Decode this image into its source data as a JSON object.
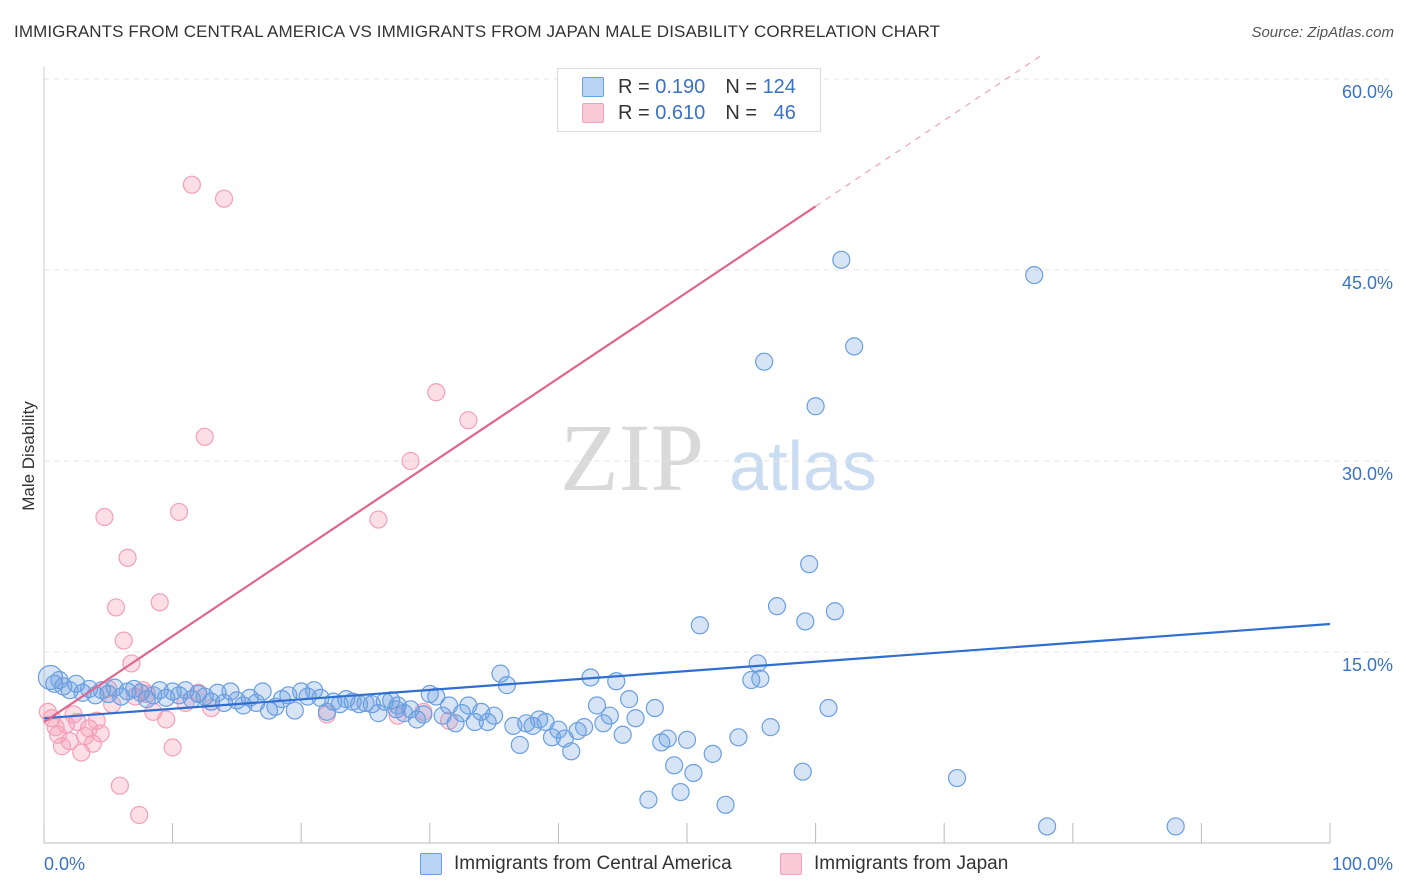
{
  "title": "IMMIGRANTS FROM CENTRAL AMERICA VS IMMIGRANTS FROM JAPAN MALE DISABILITY CORRELATION CHART",
  "source": "Source: ZipAtlas.com",
  "watermark": {
    "zip": "ZIP",
    "atlas": "atlas"
  },
  "colors": {
    "blue": "#6a9fe0",
    "blue_line": "#2f6fcf",
    "pink": "#f3a0b8",
    "pink_line": "#e0668e",
    "axis_text": "#3a72c4"
  },
  "legend": {
    "row1": {
      "r_label": "R =",
      "r_value": "0.190",
      "n_label": "N =",
      "n_value": "124"
    },
    "row2": {
      "r_label": "R =",
      "r_value": "0.610",
      "n_label": "N =",
      "n_value": "46"
    }
  },
  "chart_data": {
    "type": "scatter",
    "title": "IMMIGRANTS FROM CENTRAL AMERICA VS IMMIGRANTS FROM JAPAN MALE DISABILITY CORRELATION CHART",
    "xlabel": "",
    "ylabel": "Male Disability",
    "xlim": [
      0,
      100
    ],
    "ylim": [
      0,
      63
    ],
    "x_tick_labels": [
      "0.0%",
      "100.0%"
    ],
    "y_ticks": [
      15,
      30,
      45,
      60
    ],
    "y_tick_labels": [
      "15.0%",
      "30.0%",
      "45.0%",
      "60.0%"
    ],
    "grid": true,
    "legend_position": "bottom",
    "series": [
      {
        "name": "Immigrants from Central America",
        "color": "#6a9fe0",
        "trend": {
          "x": [
            0,
            100
          ],
          "y": [
            9.8,
            17.2
          ]
        },
        "points": [
          [
            0.5,
            13.0
          ],
          [
            0.8,
            12.5
          ],
          [
            1.2,
            12.8
          ],
          [
            1.5,
            12.3
          ],
          [
            2.0,
            12.0
          ],
          [
            2.5,
            12.5
          ],
          [
            3.0,
            11.8
          ],
          [
            3.5,
            12.1
          ],
          [
            4.0,
            11.6
          ],
          [
            4.5,
            12.0
          ],
          [
            5.0,
            11.7
          ],
          [
            5.5,
            12.2
          ],
          [
            6.0,
            11.5
          ],
          [
            6.5,
            11.9
          ],
          [
            7.0,
            12.1
          ],
          [
            7.5,
            11.8
          ],
          [
            8.0,
            11.3
          ],
          [
            8.5,
            11.6
          ],
          [
            9.0,
            12.0
          ],
          [
            9.5,
            11.4
          ],
          [
            10.0,
            11.9
          ],
          [
            10.5,
            11.6
          ],
          [
            11.0,
            12.0
          ],
          [
            11.5,
            11.3
          ],
          [
            12.0,
            11.7
          ],
          [
            12.5,
            11.5
          ],
          [
            13.0,
            11.1
          ],
          [
            13.5,
            11.8
          ],
          [
            14.0,
            11.0
          ],
          [
            14.5,
            11.9
          ],
          [
            15.0,
            11.2
          ],
          [
            15.5,
            10.8
          ],
          [
            16.0,
            11.4
          ],
          [
            16.5,
            11.0
          ],
          [
            17.0,
            11.9
          ],
          [
            17.5,
            10.4
          ],
          [
            18.0,
            10.7
          ],
          [
            18.5,
            11.3
          ],
          [
            19.0,
            11.6
          ],
          [
            19.5,
            10.4
          ],
          [
            20.0,
            11.9
          ],
          [
            20.5,
            11.5
          ],
          [
            21.0,
            12.0
          ],
          [
            21.5,
            11.4
          ],
          [
            22.0,
            10.3
          ],
          [
            22.5,
            11.1
          ],
          [
            23.0,
            10.9
          ],
          [
            23.5,
            11.3
          ],
          [
            24.0,
            11.1
          ],
          [
            24.5,
            10.9
          ],
          [
            25.0,
            11.0
          ],
          [
            25.5,
            10.9
          ],
          [
            26.0,
            10.2
          ],
          [
            26.5,
            11.1
          ],
          [
            27.0,
            11.2
          ],
          [
            27.5,
            10.8
          ],
          [
            28.0,
            10.2
          ],
          [
            28.5,
            10.5
          ],
          [
            29.0,
            9.7
          ],
          [
            29.5,
            10.1
          ],
          [
            30.0,
            11.7
          ],
          [
            30.5,
            11.5
          ],
          [
            31.0,
            10.0
          ],
          [
            31.5,
            10.8
          ],
          [
            32.0,
            9.4
          ],
          [
            32.5,
            10.2
          ],
          [
            33.0,
            10.8
          ],
          [
            33.5,
            9.5
          ],
          [
            34.0,
            10.3
          ],
          [
            34.5,
            9.5
          ],
          [
            35.0,
            10.0
          ],
          [
            35.5,
            13.3
          ],
          [
            36.0,
            12.4
          ],
          [
            36.5,
            9.2
          ],
          [
            37.0,
            7.7
          ],
          [
            37.5,
            9.4
          ],
          [
            38.0,
            9.2
          ],
          [
            38.5,
            9.7
          ],
          [
            39.0,
            9.5
          ],
          [
            39.5,
            8.3
          ],
          [
            40.0,
            8.9
          ],
          [
            40.5,
            8.2
          ],
          [
            41.0,
            7.2
          ],
          [
            41.5,
            8.8
          ],
          [
            42.0,
            9.1
          ],
          [
            42.5,
            13.0
          ],
          [
            43.0,
            10.8
          ],
          [
            43.5,
            9.4
          ],
          [
            44.0,
            10.0
          ],
          [
            44.5,
            12.7
          ],
          [
            45.0,
            8.5
          ],
          [
            45.5,
            11.3
          ],
          [
            46.0,
            9.8
          ],
          [
            47.0,
            3.4
          ],
          [
            47.5,
            10.6
          ],
          [
            48.0,
            7.9
          ],
          [
            48.5,
            8.2
          ],
          [
            49.0,
            6.1
          ],
          [
            49.5,
            4.0
          ],
          [
            50.0,
            8.1
          ],
          [
            50.5,
            5.5
          ],
          [
            51.0,
            17.1
          ],
          [
            52.0,
            7.0
          ],
          [
            53.0,
            3.0
          ],
          [
            54.0,
            8.3
          ],
          [
            55.0,
            12.8
          ],
          [
            55.5,
            14.1
          ],
          [
            56.0,
            37.8
          ],
          [
            56.5,
            9.1
          ],
          [
            57.0,
            18.6
          ],
          [
            59.0,
            5.6
          ],
          [
            59.5,
            21.9
          ],
          [
            60.0,
            34.3
          ],
          [
            61.0,
            10.6
          ],
          [
            61.5,
            18.2
          ],
          [
            62.0,
            45.8
          ],
          [
            63.0,
            39.0
          ],
          [
            71.0,
            5.1
          ],
          [
            77.0,
            44.6
          ],
          [
            78.0,
            1.3
          ],
          [
            88.0,
            1.3
          ],
          [
            59.2,
            17.4
          ],
          [
            55.7,
            12.9
          ],
          [
            27.4,
            10.5
          ]
        ]
      },
      {
        "name": "Immigrants from Japan",
        "color": "#f3a0b8",
        "trend": {
          "x": [
            0,
            60
          ],
          "y": [
            9.5,
            50.0
          ]
        },
        "points": [
          [
            0.3,
            10.3
          ],
          [
            0.6,
            9.8
          ],
          [
            0.9,
            9.1
          ],
          [
            1.1,
            8.5
          ],
          [
            1.4,
            7.6
          ],
          [
            1.7,
            9.3
          ],
          [
            2.0,
            8.0
          ],
          [
            2.3,
            10.1
          ],
          [
            2.6,
            9.5
          ],
          [
            2.9,
            7.1
          ],
          [
            3.2,
            8.4
          ],
          [
            3.5,
            9.0
          ],
          [
            3.8,
            7.8
          ],
          [
            4.1,
            9.6
          ],
          [
            4.4,
            8.6
          ],
          [
            4.7,
            25.6
          ],
          [
            5.0,
            12.1
          ],
          [
            5.3,
            10.9
          ],
          [
            5.6,
            18.5
          ],
          [
            5.9,
            4.5
          ],
          [
            6.2,
            15.9
          ],
          [
            6.5,
            22.4
          ],
          [
            6.8,
            14.1
          ],
          [
            7.1,
            11.5
          ],
          [
            7.4,
            2.2
          ],
          [
            7.7,
            12.0
          ],
          [
            8.0,
            11.7
          ],
          [
            8.5,
            10.3
          ],
          [
            9.0,
            18.9
          ],
          [
            9.5,
            9.7
          ],
          [
            10.0,
            7.5
          ],
          [
            10.5,
            26.0
          ],
          [
            11.0,
            11.0
          ],
          [
            11.5,
            51.7
          ],
          [
            12.0,
            11.8
          ],
          [
            12.5,
            31.9
          ],
          [
            13.0,
            10.6
          ],
          [
            14.0,
            50.6
          ],
          [
            22.0,
            10.1
          ],
          [
            26.0,
            25.4
          ],
          [
            27.5,
            10.0
          ],
          [
            28.5,
            30.0
          ],
          [
            29.5,
            10.3
          ],
          [
            30.5,
            35.4
          ],
          [
            31.5,
            9.6
          ],
          [
            33.0,
            33.2
          ]
        ]
      }
    ]
  }
}
